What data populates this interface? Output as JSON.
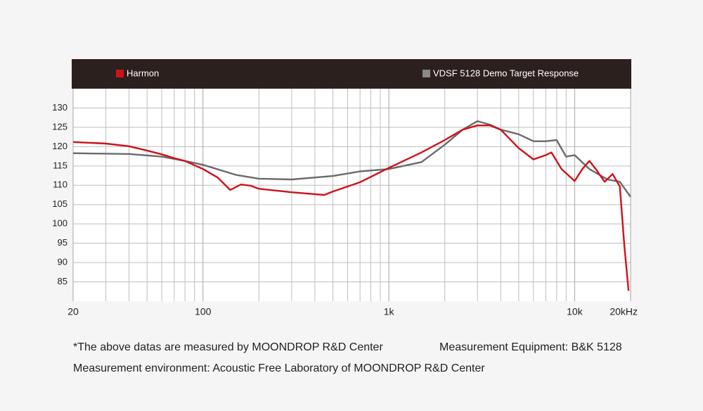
{
  "chart_data": {
    "type": "line",
    "xlog": true,
    "xlim": [
      20,
      20000
    ],
    "ylim": [
      80,
      135
    ],
    "xticks": [
      20,
      {
        "value": 100,
        "label": "100"
      },
      {
        "value": 1000,
        "label": "1k"
      },
      {
        "value": 10000,
        "label": "10k"
      },
      {
        "value": 20000,
        "label": "20kHz"
      }
    ],
    "xminorticks": [
      30,
      40,
      50,
      60,
      70,
      80,
      90,
      200,
      300,
      400,
      500,
      600,
      700,
      800,
      900,
      2000,
      3000,
      4000,
      5000,
      6000,
      7000,
      8000,
      9000
    ],
    "yticks": [
      85,
      90,
      95,
      100,
      105,
      110,
      115,
      120,
      125,
      130
    ],
    "grid": true,
    "series": [
      {
        "name": "Harmon",
        "color": "#d0111b",
        "x": [
          20,
          30,
          40,
          50,
          60,
          70,
          80,
          100,
          120,
          140,
          160,
          180,
          200,
          300,
          400,
          450,
          500,
          700,
          1000,
          1500,
          2000,
          2500,
          3000,
          3500,
          4000,
          5000,
          6000,
          7000,
          7500,
          8500,
          10000,
          11000,
          12000,
          13000,
          14500,
          16000,
          17500,
          18500,
          19500
        ],
        "values": [
          121.2,
          120.8,
          120.1,
          119,
          118,
          117,
          116.3,
          114.2,
          112,
          108.8,
          110.2,
          109.9,
          109.1,
          108.2,
          107.7,
          107.5,
          108.4,
          110.8,
          114.5,
          118.5,
          121.7,
          124.4,
          125.5,
          125.5,
          124.4,
          119.6,
          116.7,
          117.8,
          118.5,
          114.2,
          111.1,
          114.2,
          116.3,
          114.2,
          110.9,
          112.9,
          109.7,
          94.4,
          82.7
        ]
      },
      {
        "name": "VDSF 5128 Demo Target Response",
        "color": "#6b6b6b",
        "x": [
          20,
          40,
          60,
          80,
          100,
          150,
          200,
          300,
          500,
          700,
          1000,
          1500,
          2000,
          2500,
          3000,
          3500,
          4000,
          5000,
          6000,
          7000,
          8000,
          9000,
          10000,
          12000,
          15000,
          17500,
          20000
        ],
        "values": [
          118.3,
          118.1,
          117.4,
          116.3,
          115.3,
          112.7,
          111.7,
          111.5,
          112.4,
          113.6,
          114.2,
          116,
          120.5,
          124.4,
          126.6,
          125.7,
          124.4,
          123.2,
          121.4,
          121.4,
          121.7,
          117.4,
          117.8,
          114.2,
          111.5,
          110.9,
          107
        ]
      }
    ]
  },
  "notes": [
    "*The above datas are measured by MOONDROP R&D Center",
    "Measurement Equipment: B&K 5128",
    "Measurement environment: Acoustic Free Laboratory of MOONDROP R&D Center"
  ]
}
